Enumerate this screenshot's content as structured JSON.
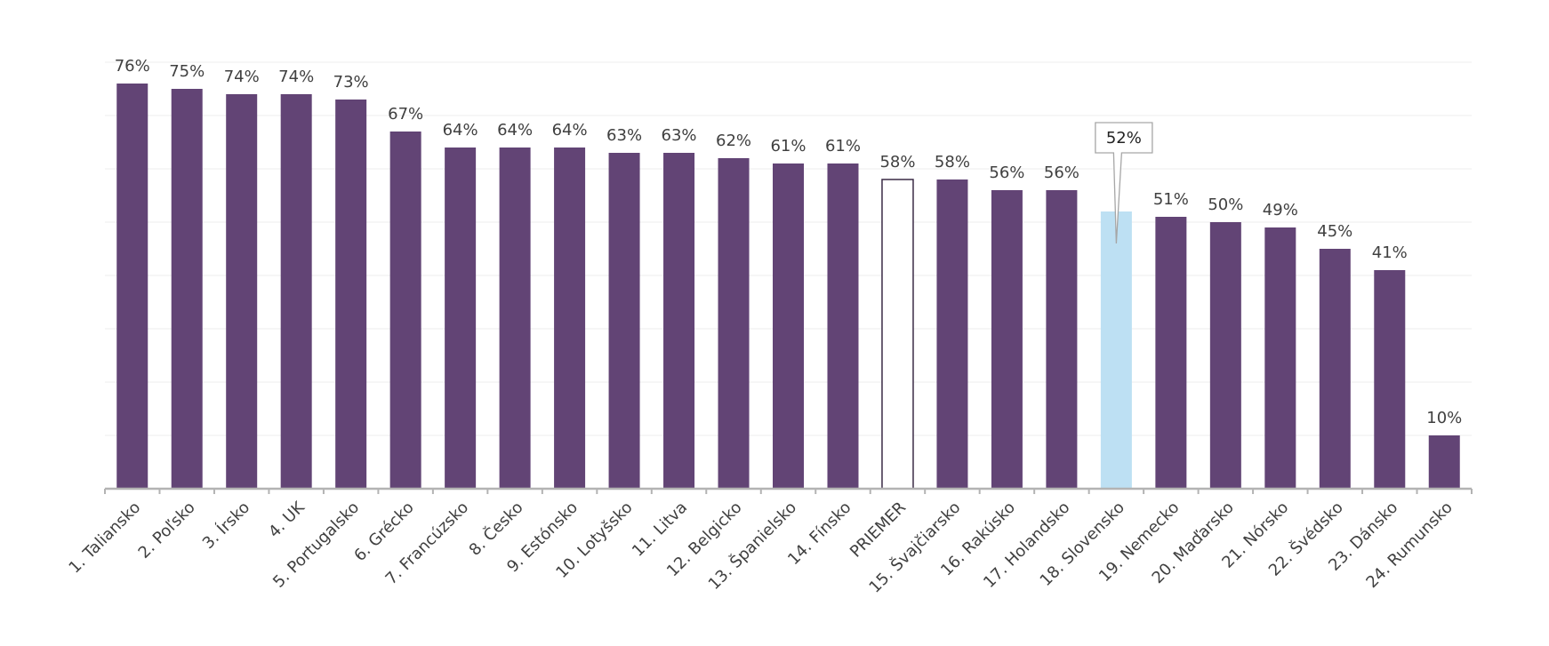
{
  "chart_data": {
    "type": "bar",
    "categories": [
      "1. Taliansko",
      "2. Poľsko",
      "3. Írsko",
      "4. UK",
      "5. Portugalsko",
      "6. Grécko",
      "7. Francúzsko",
      "8. Česko",
      "9. Estónsko",
      "10. Lotyšsko",
      "11. Litva",
      "12. Belgicko",
      "13. Španielsko",
      "14. Fínsko",
      "PRIEMER",
      "15. Švajčiarsko",
      "16. Rakúsko",
      "17. Holandsko",
      "18. Slovensko",
      "19. Nemecko",
      "20. Maďarsko",
      "21. Nórsko",
      "22. Švédsko",
      "23. Dánsko",
      "24. Rumunsko"
    ],
    "values": [
      76,
      75,
      74,
      74,
      73,
      67,
      64,
      64,
      64,
      63,
      63,
      62,
      61,
      61,
      58,
      58,
      56,
      56,
      52,
      51,
      50,
      49,
      45,
      41,
      10
    ],
    "value_labels": [
      "76%",
      "75%",
      "74%",
      "74%",
      "73%",
      "67%",
      "64%",
      "64%",
      "64%",
      "63%",
      "63%",
      "62%",
      "61%",
      "61%",
      "58%",
      "58%",
      "56%",
      "56%",
      "52%",
      "51%",
      "50%",
      "49%",
      "45%",
      "41%",
      "10%"
    ],
    "ylim": [
      0,
      80
    ],
    "grid": true,
    "highlight": {
      "average_category": "PRIEMER",
      "focus_category": "18. Slovensko"
    },
    "colors": {
      "bar": "#624475",
      "average_fill": "#ffffff",
      "average_stroke": "#3a2a45",
      "focus_bar": "#bde0f3",
      "axis": "#b3b3b3",
      "grid": "#ececec",
      "callout_stroke": "#a6a6a6"
    }
  }
}
